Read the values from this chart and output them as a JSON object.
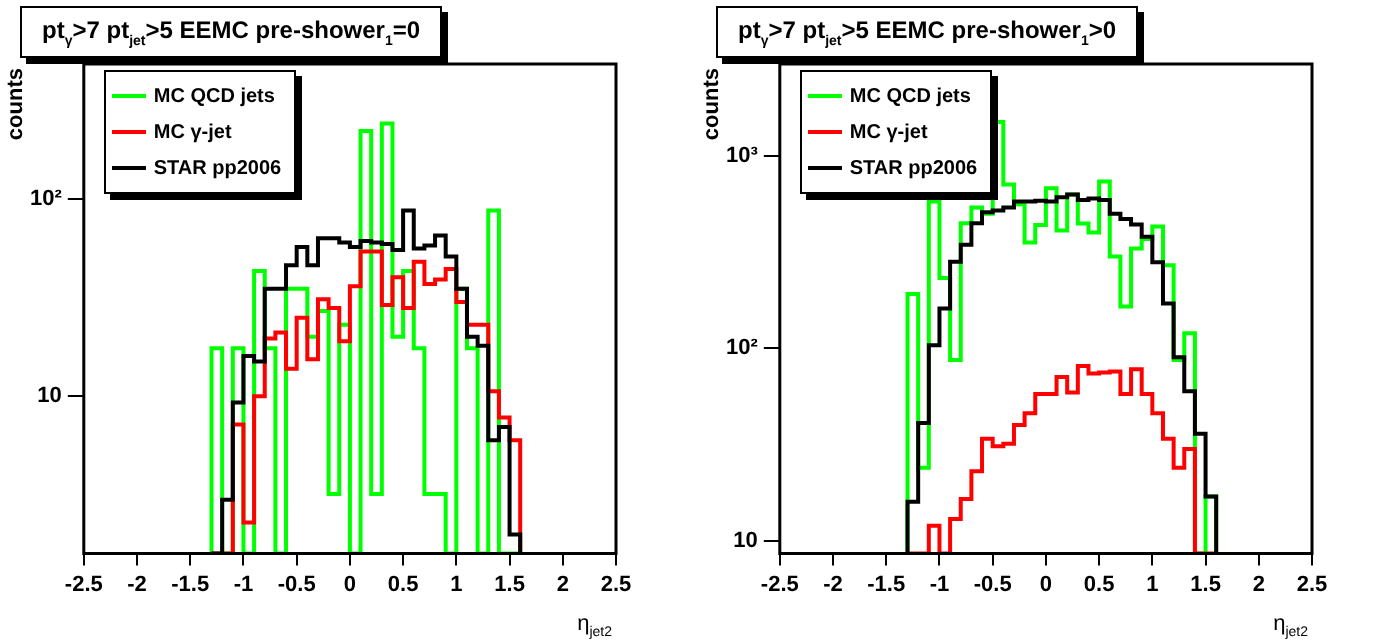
{
  "chart_data": [
    {
      "type": "histogram",
      "title": "pt$_{γ}$>7  pt$_{jet}$>5  EEMC pre-shower$_{1}$=0",
      "xlabel": "η$_{jet2}$",
      "ylabel": "counts",
      "log": true,
      "legend": "top left",
      "bins": [
        -1.3,
        -1.2,
        -1.1,
        -1.0,
        -0.9,
        -0.8,
        -0.7,
        -0.6,
        -0.5,
        -0.4,
        -0.3,
        -0.2,
        -0.1,
        0,
        0.1,
        0.2,
        0.3,
        0.4,
        0.5,
        0.6,
        0.7,
        0.8,
        0.9,
        1.0,
        1.1,
        1.2,
        1.3,
        1.4,
        1.5,
        1.6
      ],
      "xlim": [
        -2.5,
        2.5
      ],
      "xticks": [
        -2.5,
        -2,
        -1.5,
        -1,
        -0.5,
        0,
        0.5,
        1,
        1.5,
        2,
        2.5
      ],
      "ylim": [
        1.6,
        480
      ],
      "yticks": [
        {
          "value": 10,
          "label": "10"
        },
        {
          "value": 100,
          "label": "10²"
        }
      ],
      "series": [
        {
          "name": "MC QCD jets",
          "color": "#00ff00",
          "values": [
            17.5,
            null,
            17.5,
            null,
            43,
            17.5,
            null,
            35,
            35,
            20,
            27,
            3.2,
            23,
            null,
            220,
            3.2,
            240,
            20,
            43,
            17.5,
            3.2,
            3.2,
            null,
            35,
            17.5,
            null,
            87,
            null,
            null
          ]
        },
        {
          "name": "MC γ-jet",
          "color": "#ff0000",
          "values": [
            null,
            null,
            7.2,
            2.3,
            10,
            19.6,
            21,
            13.8,
            25,
            15.4,
            31,
            28,
            19,
            36,
            54,
            54,
            29,
            40,
            28,
            48,
            37,
            39,
            44,
            30,
            23,
            23,
            10.6,
            7.8,
            6
          ]
        },
        {
          "name": "STAR pp2006",
          "color": "#000000",
          "values": [
            null,
            3,
            9.3,
            16,
            15,
            35,
            35,
            46,
            57,
            46,
            63,
            63,
            60,
            57,
            61,
            60,
            59,
            55,
            87,
            56,
            58,
            65,
            51,
            35,
            20,
            18,
            6,
            7,
            2
          ]
        }
      ]
    },
    {
      "type": "histogram",
      "title": "pt$_{γ}$>7  pt$_{jet}$>5  EEMC pre-shower$_{1}$>0",
      "xlabel": "η$_{jet2}$",
      "ylabel": "counts",
      "log": true,
      "legend": "top left",
      "bins": [
        -1.3,
        -1.2,
        -1.1,
        -1.0,
        -0.9,
        -0.8,
        -0.7,
        -0.6,
        -0.5,
        -0.4,
        -0.3,
        -0.2,
        -0.1,
        0,
        0.1,
        0.2,
        0.3,
        0.4,
        0.5,
        0.6,
        0.7,
        0.8,
        0.9,
        1.0,
        1.1,
        1.2,
        1.3,
        1.4,
        1.5,
        1.6
      ],
      "xlim": [
        -2.5,
        2.5
      ],
      "xticks": [
        -2.5,
        -2,
        -1.5,
        -1,
        -0.5,
        0,
        0.5,
        1,
        1.5,
        2,
        2.5
      ],
      "ylim": [
        8.6,
        3000
      ],
      "yticks": [
        {
          "value": 10,
          "label": "10"
        },
        {
          "value": 100,
          "label": "10²"
        },
        {
          "value": 1000,
          "label": "10³"
        }
      ],
      "series": [
        {
          "name": "MC QCD jets",
          "color": "#00ff00",
          "values": [
            192,
            24,
            580,
            232,
            87,
            447,
            540,
            500,
            1500,
            710,
            560,
            355,
            437,
            680,
            410,
            630,
            445,
            400,
            735,
            300,
            165,
            330,
            370,
            430,
            270,
            87,
            120,
            null,
            17
          ]
        },
        {
          "name": "MC γ-jet",
          "color": "#ff0000",
          "values": [
            null,
            null,
            12,
            null,
            13,
            16.5,
            23,
            34,
            31,
            32,
            40,
            46,
            58,
            58,
            71,
            59,
            81,
            74,
            75,
            76,
            58,
            78,
            58,
            46,
            34,
            24,
            30,
            null,
            null
          ]
        },
        {
          "name": "STAR pp2006",
          "color": "#000000",
          "values": [
            16,
            41,
            104,
            161,
            282,
            346,
            447,
            510,
            520,
            540,
            580,
            580,
            585,
            580,
            610,
            630,
            590,
            600,
            590,
            500,
            470,
            440,
            380,
            280,
            171,
            90,
            60,
            36,
            17
          ]
        }
      ]
    }
  ]
}
